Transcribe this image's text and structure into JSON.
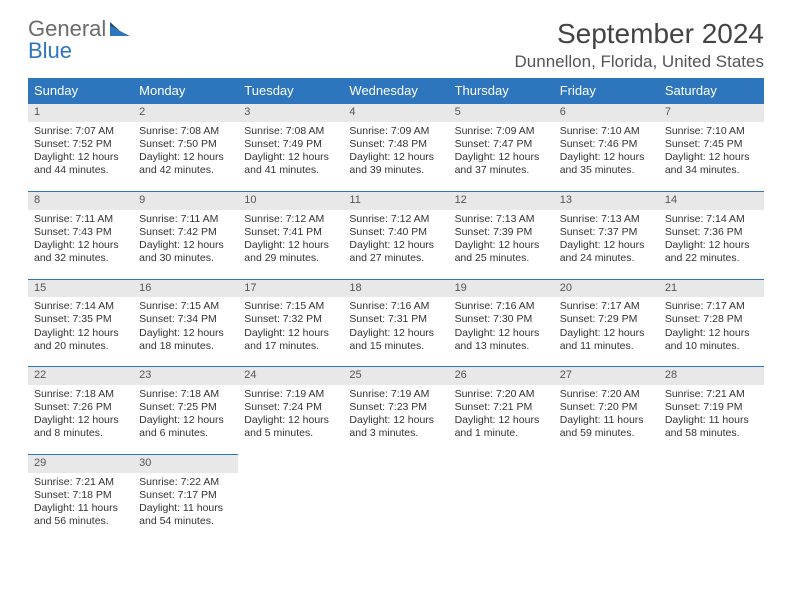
{
  "logo": {
    "word1": "General",
    "word2": "Blue"
  },
  "title": "September 2024",
  "location": "Dunnellon, Florida, United States",
  "colors": {
    "header_bg": "#2d76bd",
    "header_fg": "#ffffff",
    "daynum_bg": "#e8e8e8",
    "daynum_border": "#2d76bd",
    "text": "#333333",
    "logo_word1": "#6b6b6b",
    "logo_word2": "#2d76bd"
  },
  "fonts": {
    "month_title_size_pt": 21,
    "location_size_pt": 13,
    "weekday_size_pt": 10,
    "body_size_pt": 8
  },
  "weekdays": [
    "Sunday",
    "Monday",
    "Tuesday",
    "Wednesday",
    "Thursday",
    "Friday",
    "Saturday"
  ],
  "weeks": [
    [
      {
        "n": "1",
        "sunrise": "Sunrise: 7:07 AM",
        "sunset": "Sunset: 7:52 PM",
        "daylight": "Daylight: 12 hours and 44 minutes."
      },
      {
        "n": "2",
        "sunrise": "Sunrise: 7:08 AM",
        "sunset": "Sunset: 7:50 PM",
        "daylight": "Daylight: 12 hours and 42 minutes."
      },
      {
        "n": "3",
        "sunrise": "Sunrise: 7:08 AM",
        "sunset": "Sunset: 7:49 PM",
        "daylight": "Daylight: 12 hours and 41 minutes."
      },
      {
        "n": "4",
        "sunrise": "Sunrise: 7:09 AM",
        "sunset": "Sunset: 7:48 PM",
        "daylight": "Daylight: 12 hours and 39 minutes."
      },
      {
        "n": "5",
        "sunrise": "Sunrise: 7:09 AM",
        "sunset": "Sunset: 7:47 PM",
        "daylight": "Daylight: 12 hours and 37 minutes."
      },
      {
        "n": "6",
        "sunrise": "Sunrise: 7:10 AM",
        "sunset": "Sunset: 7:46 PM",
        "daylight": "Daylight: 12 hours and 35 minutes."
      },
      {
        "n": "7",
        "sunrise": "Sunrise: 7:10 AM",
        "sunset": "Sunset: 7:45 PM",
        "daylight": "Daylight: 12 hours and 34 minutes."
      }
    ],
    [
      {
        "n": "8",
        "sunrise": "Sunrise: 7:11 AM",
        "sunset": "Sunset: 7:43 PM",
        "daylight": "Daylight: 12 hours and 32 minutes."
      },
      {
        "n": "9",
        "sunrise": "Sunrise: 7:11 AM",
        "sunset": "Sunset: 7:42 PM",
        "daylight": "Daylight: 12 hours and 30 minutes."
      },
      {
        "n": "10",
        "sunrise": "Sunrise: 7:12 AM",
        "sunset": "Sunset: 7:41 PM",
        "daylight": "Daylight: 12 hours and 29 minutes."
      },
      {
        "n": "11",
        "sunrise": "Sunrise: 7:12 AM",
        "sunset": "Sunset: 7:40 PM",
        "daylight": "Daylight: 12 hours and 27 minutes."
      },
      {
        "n": "12",
        "sunrise": "Sunrise: 7:13 AM",
        "sunset": "Sunset: 7:39 PM",
        "daylight": "Daylight: 12 hours and 25 minutes."
      },
      {
        "n": "13",
        "sunrise": "Sunrise: 7:13 AM",
        "sunset": "Sunset: 7:37 PM",
        "daylight": "Daylight: 12 hours and 24 minutes."
      },
      {
        "n": "14",
        "sunrise": "Sunrise: 7:14 AM",
        "sunset": "Sunset: 7:36 PM",
        "daylight": "Daylight: 12 hours and 22 minutes."
      }
    ],
    [
      {
        "n": "15",
        "sunrise": "Sunrise: 7:14 AM",
        "sunset": "Sunset: 7:35 PM",
        "daylight": "Daylight: 12 hours and 20 minutes."
      },
      {
        "n": "16",
        "sunrise": "Sunrise: 7:15 AM",
        "sunset": "Sunset: 7:34 PM",
        "daylight": "Daylight: 12 hours and 18 minutes."
      },
      {
        "n": "17",
        "sunrise": "Sunrise: 7:15 AM",
        "sunset": "Sunset: 7:32 PM",
        "daylight": "Daylight: 12 hours and 17 minutes."
      },
      {
        "n": "18",
        "sunrise": "Sunrise: 7:16 AM",
        "sunset": "Sunset: 7:31 PM",
        "daylight": "Daylight: 12 hours and 15 minutes."
      },
      {
        "n": "19",
        "sunrise": "Sunrise: 7:16 AM",
        "sunset": "Sunset: 7:30 PM",
        "daylight": "Daylight: 12 hours and 13 minutes."
      },
      {
        "n": "20",
        "sunrise": "Sunrise: 7:17 AM",
        "sunset": "Sunset: 7:29 PM",
        "daylight": "Daylight: 12 hours and 11 minutes."
      },
      {
        "n": "21",
        "sunrise": "Sunrise: 7:17 AM",
        "sunset": "Sunset: 7:28 PM",
        "daylight": "Daylight: 12 hours and 10 minutes."
      }
    ],
    [
      {
        "n": "22",
        "sunrise": "Sunrise: 7:18 AM",
        "sunset": "Sunset: 7:26 PM",
        "daylight": "Daylight: 12 hours and 8 minutes."
      },
      {
        "n": "23",
        "sunrise": "Sunrise: 7:18 AM",
        "sunset": "Sunset: 7:25 PM",
        "daylight": "Daylight: 12 hours and 6 minutes."
      },
      {
        "n": "24",
        "sunrise": "Sunrise: 7:19 AM",
        "sunset": "Sunset: 7:24 PM",
        "daylight": "Daylight: 12 hours and 5 minutes."
      },
      {
        "n": "25",
        "sunrise": "Sunrise: 7:19 AM",
        "sunset": "Sunset: 7:23 PM",
        "daylight": "Daylight: 12 hours and 3 minutes."
      },
      {
        "n": "26",
        "sunrise": "Sunrise: 7:20 AM",
        "sunset": "Sunset: 7:21 PM",
        "daylight": "Daylight: 12 hours and 1 minute."
      },
      {
        "n": "27",
        "sunrise": "Sunrise: 7:20 AM",
        "sunset": "Sunset: 7:20 PM",
        "daylight": "Daylight: 11 hours and 59 minutes."
      },
      {
        "n": "28",
        "sunrise": "Sunrise: 7:21 AM",
        "sunset": "Sunset: 7:19 PM",
        "daylight": "Daylight: 11 hours and 58 minutes."
      }
    ],
    [
      {
        "n": "29",
        "sunrise": "Sunrise: 7:21 AM",
        "sunset": "Sunset: 7:18 PM",
        "daylight": "Daylight: 11 hours and 56 minutes."
      },
      {
        "n": "30",
        "sunrise": "Sunrise: 7:22 AM",
        "sunset": "Sunset: 7:17 PM",
        "daylight": "Daylight: 11 hours and 54 minutes."
      },
      null,
      null,
      null,
      null,
      null
    ]
  ]
}
